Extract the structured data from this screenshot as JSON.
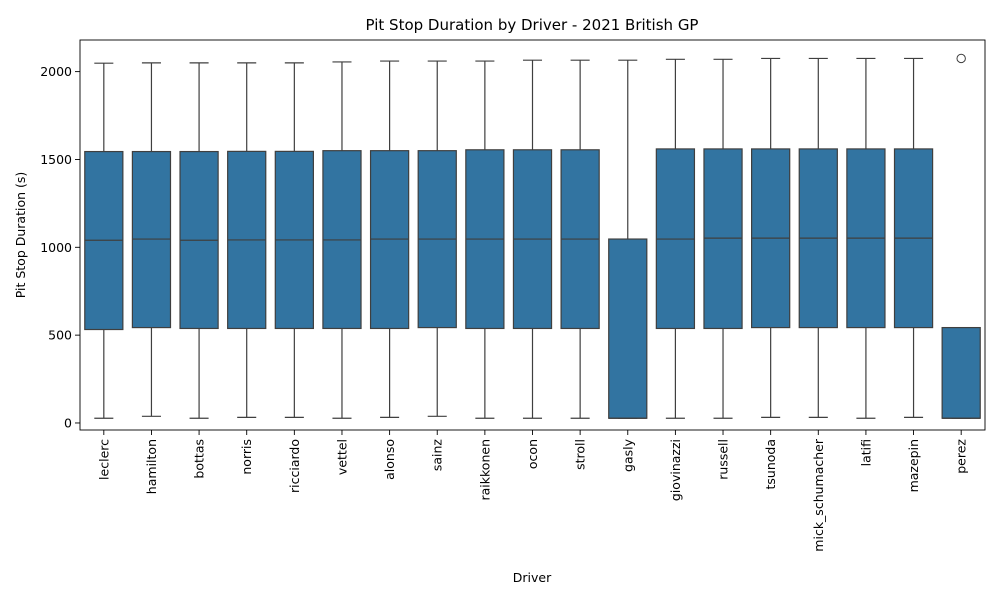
{
  "chart_data": {
    "type": "box",
    "title": "Pit Stop Duration by Driver - 2021 British GP",
    "xlabel": "Driver",
    "ylabel": "Pit Stop Duration (s)",
    "ylim": [
      -40,
      2180
    ],
    "yticks": [
      0,
      500,
      1000,
      1500,
      2000
    ],
    "grid": false,
    "legend": "none",
    "box_color": "#3274a1",
    "edge_color": "#3f3f3f",
    "categories": [
      "leclerc",
      "hamilton",
      "bottas",
      "norris",
      "ricciardo",
      "vettel",
      "alonso",
      "sainz",
      "raikkonen",
      "ocon",
      "stroll",
      "gasly",
      "giovinazzi",
      "russell",
      "tsunoda",
      "mick_schumacher",
      "latifi",
      "mazepin",
      "perez"
    ],
    "boxes": [
      {
        "driver": "leclerc",
        "whisker_low": 27,
        "q1": 532,
        "median": 1040,
        "q3": 1545,
        "whisker_high": 2048,
        "outliers": []
      },
      {
        "driver": "hamilton",
        "whisker_low": 38,
        "q1": 543,
        "median": 1047,
        "q3": 1545,
        "whisker_high": 2050,
        "outliers": []
      },
      {
        "driver": "bottas",
        "whisker_low": 27,
        "q1": 538,
        "median": 1040,
        "q3": 1545,
        "whisker_high": 2050,
        "outliers": []
      },
      {
        "driver": "norris",
        "whisker_low": 32,
        "q1": 538,
        "median": 1042,
        "q3": 1546,
        "whisker_high": 2050,
        "outliers": []
      },
      {
        "driver": "ricciardo",
        "whisker_low": 32,
        "q1": 538,
        "median": 1042,
        "q3": 1546,
        "whisker_high": 2050,
        "outliers": []
      },
      {
        "driver": "vettel",
        "whisker_low": 27,
        "q1": 538,
        "median": 1042,
        "q3": 1550,
        "whisker_high": 2055,
        "outliers": []
      },
      {
        "driver": "alonso",
        "whisker_low": 32,
        "q1": 538,
        "median": 1047,
        "q3": 1550,
        "whisker_high": 2060,
        "outliers": []
      },
      {
        "driver": "sainz",
        "whisker_low": 38,
        "q1": 543,
        "median": 1047,
        "q3": 1550,
        "whisker_high": 2060,
        "outliers": []
      },
      {
        "driver": "raikkonen",
        "whisker_low": 27,
        "q1": 538,
        "median": 1047,
        "q3": 1555,
        "whisker_high": 2060,
        "outliers": []
      },
      {
        "driver": "ocon",
        "whisker_low": 27,
        "q1": 538,
        "median": 1047,
        "q3": 1555,
        "whisker_high": 2065,
        "outliers": []
      },
      {
        "driver": "stroll",
        "whisker_low": 27,
        "q1": 538,
        "median": 1047,
        "q3": 1555,
        "whisker_high": 2065,
        "outliers": []
      },
      {
        "driver": "gasly",
        "whisker_low": 27,
        "q1": 27,
        "median": 27,
        "q3": 1047,
        "whisker_high": 2065,
        "outliers": []
      },
      {
        "driver": "giovinazzi",
        "whisker_low": 27,
        "q1": 538,
        "median": 1047,
        "q3": 1560,
        "whisker_high": 2070,
        "outliers": []
      },
      {
        "driver": "russell",
        "whisker_low": 27,
        "q1": 538,
        "median": 1052,
        "q3": 1560,
        "whisker_high": 2070,
        "outliers": []
      },
      {
        "driver": "tsunoda",
        "whisker_low": 32,
        "q1": 543,
        "median": 1052,
        "q3": 1560,
        "whisker_high": 2075,
        "outliers": []
      },
      {
        "driver": "mick_schumacher",
        "whisker_low": 32,
        "q1": 543,
        "median": 1052,
        "q3": 1560,
        "whisker_high": 2075,
        "outliers": []
      },
      {
        "driver": "latifi",
        "whisker_low": 27,
        "q1": 543,
        "median": 1052,
        "q3": 1560,
        "whisker_high": 2075,
        "outliers": []
      },
      {
        "driver": "mazepin",
        "whisker_low": 32,
        "q1": 543,
        "median": 1052,
        "q3": 1560,
        "whisker_high": 2075,
        "outliers": []
      },
      {
        "driver": "perez",
        "whisker_low": 27,
        "q1": 27,
        "median": 27,
        "q3": 543,
        "whisker_high": 543,
        "outliers": [
          2075
        ]
      }
    ]
  }
}
